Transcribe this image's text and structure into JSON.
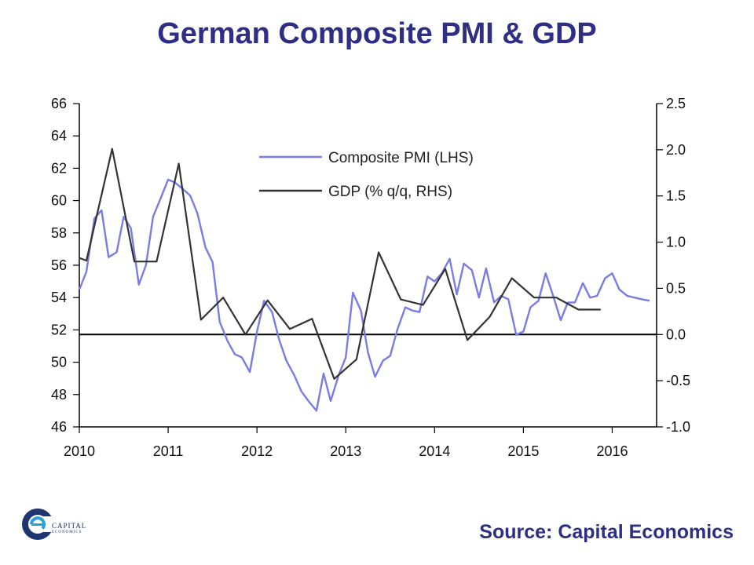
{
  "chart_data": {
    "type": "line",
    "title": "German Composite PMI & GDP",
    "x_tick_labels": [
      "2010",
      "2011",
      "2012",
      "2013",
      "2014",
      "2015",
      "2016"
    ],
    "x_range": [
      2010.0,
      2016.5
    ],
    "left_axis": {
      "range": [
        46,
        66
      ],
      "tick_labels": [
        "66",
        "64",
        "62",
        "60",
        "58",
        "56",
        "54",
        "52",
        "50",
        "48",
        "46"
      ],
      "tick_values": [
        66,
        64,
        62,
        60,
        58,
        56,
        54,
        52,
        50,
        48,
        46
      ]
    },
    "right_axis": {
      "range": [
        -1.0,
        2.5
      ],
      "tick_labels": [
        "2.5",
        "2.0",
        "1.5",
        "1.0",
        "0.5",
        "0.0",
        "-0.5",
        "-1.0"
      ],
      "tick_values": [
        2.5,
        2.0,
        1.5,
        1.0,
        0.5,
        0.0,
        -0.5,
        -1.0
      ]
    },
    "legend_placement": "top-center",
    "zero_line": true,
    "grid": false,
    "series": [
      {
        "name": "Composite PMI (LHS)",
        "axis": "left",
        "color": "#7b7be6",
        "points": [
          [
            2010.0,
            54.5
          ],
          [
            2010.08,
            55.6
          ],
          [
            2010.17,
            58.9
          ],
          [
            2010.25,
            59.4
          ],
          [
            2010.33,
            56.5
          ],
          [
            2010.42,
            56.8
          ],
          [
            2010.5,
            59.0
          ],
          [
            2010.58,
            58.3
          ],
          [
            2010.67,
            54.8
          ],
          [
            2010.75,
            56.0
          ],
          [
            2010.83,
            59.0
          ],
          [
            2010.92,
            60.2
          ],
          [
            2011.0,
            61.3
          ],
          [
            2011.08,
            61.1
          ],
          [
            2011.17,
            60.7
          ],
          [
            2011.25,
            60.3
          ],
          [
            2011.33,
            59.2
          ],
          [
            2011.42,
            57.1
          ],
          [
            2011.5,
            56.2
          ],
          [
            2011.58,
            52.5
          ],
          [
            2011.67,
            51.3
          ],
          [
            2011.75,
            50.5
          ],
          [
            2011.83,
            50.3
          ],
          [
            2011.92,
            49.4
          ],
          [
            2012.0,
            51.9
          ],
          [
            2012.08,
            53.8
          ],
          [
            2012.17,
            53.1
          ],
          [
            2012.25,
            51.4
          ],
          [
            2012.33,
            50.1
          ],
          [
            2012.42,
            49.2
          ],
          [
            2012.5,
            48.2
          ],
          [
            2012.58,
            47.6
          ],
          [
            2012.67,
            47.0
          ],
          [
            2012.75,
            49.3
          ],
          [
            2012.83,
            47.6
          ],
          [
            2012.92,
            49.2
          ],
          [
            2013.0,
            50.3
          ],
          [
            2013.08,
            54.3
          ],
          [
            2013.17,
            53.2
          ],
          [
            2013.25,
            50.6
          ],
          [
            2013.33,
            49.1
          ],
          [
            2013.42,
            50.1
          ],
          [
            2013.5,
            50.4
          ],
          [
            2013.58,
            52.0
          ],
          [
            2013.67,
            53.4
          ],
          [
            2013.75,
            53.2
          ],
          [
            2013.83,
            53.1
          ],
          [
            2013.92,
            55.3
          ],
          [
            2014.0,
            55.0
          ],
          [
            2014.08,
            55.5
          ],
          [
            2014.17,
            56.4
          ],
          [
            2014.25,
            54.2
          ],
          [
            2014.33,
            56.1
          ],
          [
            2014.42,
            55.7
          ],
          [
            2014.5,
            54.0
          ],
          [
            2014.58,
            55.8
          ],
          [
            2014.67,
            53.7
          ],
          [
            2014.75,
            54.1
          ],
          [
            2014.83,
            53.9
          ],
          [
            2014.92,
            51.7
          ],
          [
            2015.0,
            51.9
          ],
          [
            2015.08,
            53.4
          ],
          [
            2015.17,
            53.8
          ],
          [
            2015.25,
            55.5
          ],
          [
            2015.33,
            54.2
          ],
          [
            2015.42,
            52.6
          ],
          [
            2015.5,
            53.7
          ],
          [
            2015.58,
            53.7
          ],
          [
            2015.67,
            54.9
          ],
          [
            2015.75,
            54.0
          ],
          [
            2015.83,
            54.1
          ],
          [
            2015.92,
            55.2
          ],
          [
            2016.0,
            55.5
          ],
          [
            2016.08,
            54.5
          ],
          [
            2016.17,
            54.1
          ],
          [
            2016.25,
            54.0
          ],
          [
            2016.33,
            53.9
          ],
          [
            2016.42,
            53.8
          ]
        ]
      },
      {
        "name": "GDP (% q/q, RHS)",
        "axis": "right",
        "color": "#333333",
        "points": [
          [
            2010.0,
            0.83
          ],
          [
            2010.08,
            0.8
          ],
          [
            2010.37,
            2.01
          ],
          [
            2010.62,
            0.79
          ],
          [
            2010.87,
            0.79
          ],
          [
            2011.12,
            1.85
          ],
          [
            2011.37,
            0.16
          ],
          [
            2011.62,
            0.4
          ],
          [
            2011.87,
            0.0
          ],
          [
            2012.12,
            0.37
          ],
          [
            2012.37,
            0.06
          ],
          [
            2012.62,
            0.17
          ],
          [
            2012.87,
            -0.48
          ],
          [
            2013.12,
            -0.27
          ],
          [
            2013.37,
            0.89
          ],
          [
            2013.62,
            0.38
          ],
          [
            2013.87,
            0.32
          ],
          [
            2014.12,
            0.71
          ],
          [
            2014.37,
            -0.06
          ],
          [
            2014.62,
            0.19
          ],
          [
            2014.87,
            0.61
          ],
          [
            2015.12,
            0.4
          ],
          [
            2015.37,
            0.4
          ],
          [
            2015.62,
            0.27
          ],
          [
            2015.87,
            0.27
          ]
        ]
      }
    ]
  },
  "footer": {
    "logo_text": "CAPITAL",
    "logo_subtext": "ECONOMICS",
    "source": "Source: Capital Economics"
  }
}
